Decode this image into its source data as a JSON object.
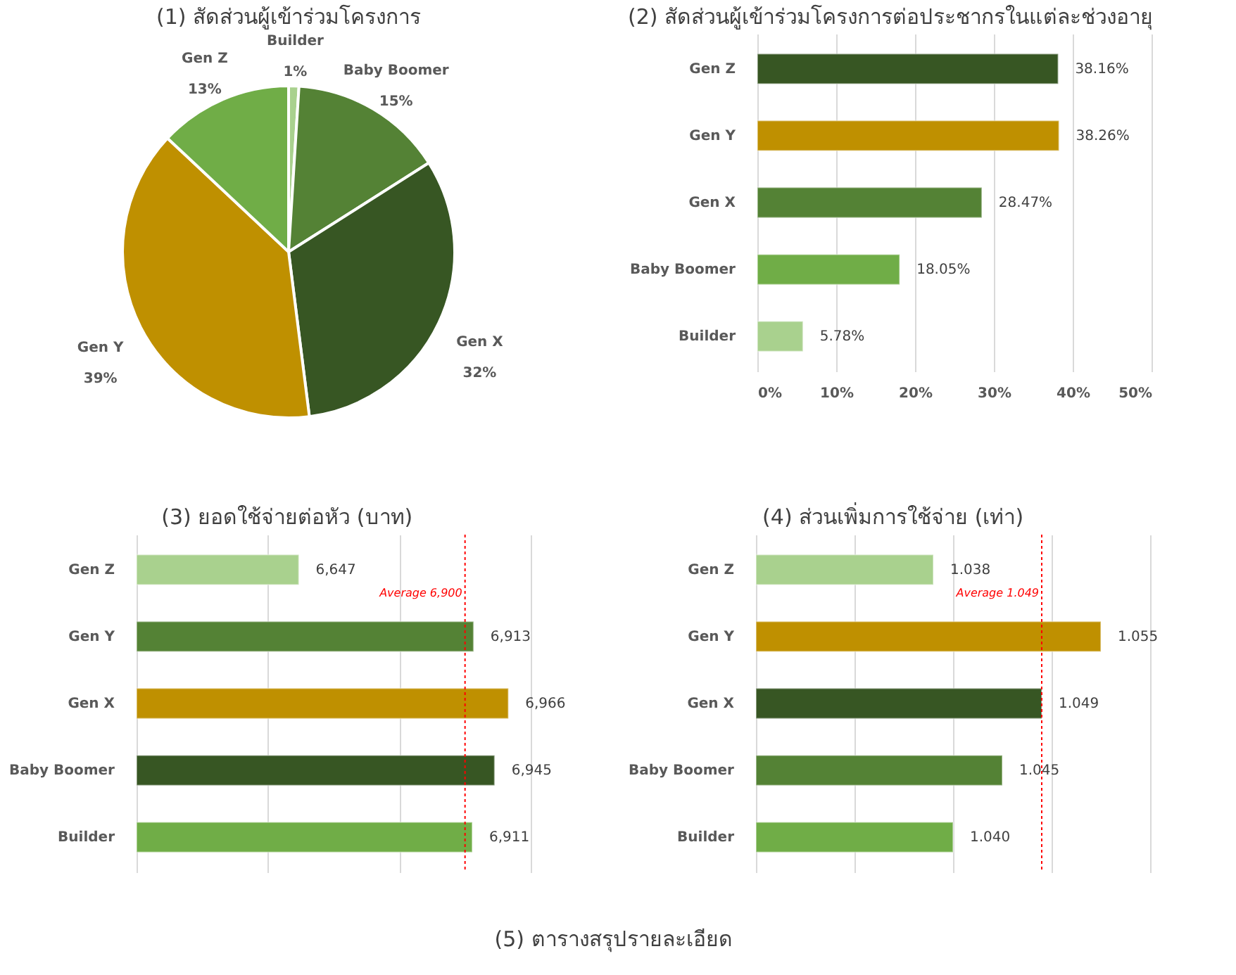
{
  "chart_data": [
    {
      "type": "pie",
      "title": "(1) สัดส่วนผู้เข้าร่วมโครงการ",
      "categories": [
        "Builder",
        "Baby Boomer",
        "Gen X",
        "Gen Y",
        "Gen Z"
      ],
      "values": [
        1,
        15,
        32,
        39,
        13
      ],
      "colors": [
        "#a9d18e",
        "#548235",
        "#375623",
        "#bf9000",
        "#70ad47"
      ],
      "value_labels": [
        "1%",
        "15%",
        "32%",
        "39%",
        "13%"
      ]
    },
    {
      "type": "bar",
      "orientation": "horizontal",
      "title": "(2) สัดส่วนผู้เข้าร่วมโครงการต่อประชากรในแต่ละช่วงอายุ",
      "categories": [
        "Gen Z",
        "Gen Y",
        "Gen X",
        "Baby Boomer",
        "Builder"
      ],
      "values": [
        38.16,
        38.26,
        28.47,
        18.05,
        5.78
      ],
      "colors": [
        "#375623",
        "#bf9000",
        "#548235",
        "#70ad47",
        "#a9d18e"
      ],
      "value_labels": [
        "38.16%",
        "38.26%",
        "28.47%",
        "18.05%",
        "5.78%"
      ],
      "xlim": [
        0,
        50
      ],
      "xticks": [
        {
          "value": 0,
          "label": "0%"
        },
        {
          "value": 10,
          "label": "10%"
        },
        {
          "value": 20,
          "label": "20%"
        },
        {
          "value": 30,
          "label": "30%"
        },
        {
          "value": 40,
          "label": "40%"
        },
        {
          "value": 50,
          "label": "50%"
        }
      ],
      "grid": "x"
    },
    {
      "type": "bar",
      "orientation": "horizontal",
      "title": "(3) ยอดใช้จ่ายต่อหัว (บาท)",
      "categories": [
        "Gen Z",
        "Gen Y",
        "Gen X",
        "Baby Boomer",
        "Builder"
      ],
      "values": [
        6647,
        6913,
        6966,
        6945,
        6911
      ],
      "colors": [
        "#a9d18e",
        "#548235",
        "#bf9000",
        "#375623",
        "#70ad47"
      ],
      "value_labels": [
        "6,647",
        "6,913",
        "6,966",
        "6,945",
        "6,911"
      ],
      "xlim": [
        6400,
        7000
      ],
      "xticks": [
        {
          "value": 6400,
          "label": null
        },
        {
          "value": 6600,
          "label": null
        },
        {
          "value": 6800,
          "label": null
        },
        {
          "value": 7000,
          "label": null
        }
      ],
      "tick_labels": "y",
      "grid": "x",
      "ref_lines": [
        {
          "axis": "x",
          "value": 6900,
          "label": "Average 6,900",
          "color": "#ff0000",
          "line_style": "dotted"
        }
      ]
    },
    {
      "type": "bar",
      "orientation": "horizontal",
      "title": "(4) ส่วนเพิ่มการใช้จ่าย (เท่า)",
      "categories": [
        "Gen Z",
        "Gen Y",
        "Gen X",
        "Baby Boomer",
        "Builder"
      ],
      "values": [
        1.038,
        1.055,
        1.049,
        1.045,
        1.04
      ],
      "colors": [
        "#a9d18e",
        "#bf9000",
        "#375623",
        "#548235",
        "#70ad47"
      ],
      "value_labels": [
        "1.038",
        "1.055",
        "1.049",
        "1.045",
        "1.040"
      ],
      "xlim": [
        1.02,
        1.06
      ],
      "xticks": [
        {
          "value": 1.02,
          "label": null
        },
        {
          "value": 1.03,
          "label": null
        },
        {
          "value": 1.04,
          "label": null
        },
        {
          "value": 1.05,
          "label": null
        },
        {
          "value": 1.06,
          "label": null
        }
      ],
      "tick_labels": "y",
      "grid": "x",
      "ref_lines": [
        {
          "axis": "x",
          "value": 1.049,
          "label": "Average 1.049",
          "color": "#ff0000",
          "line_style": "dotted"
        }
      ]
    },
    {
      "type": "other",
      "title": "(5) ตารางสรุปรายละเอียด"
    }
  ]
}
